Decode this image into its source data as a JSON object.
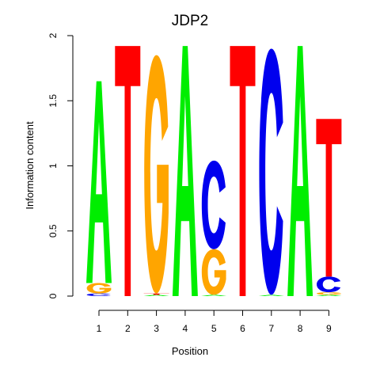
{
  "chart_data": {
    "type": "sequence-logo",
    "title": "JDP2",
    "xlabel": "Position",
    "ylabel": "Information content",
    "ylim": [
      0,
      2
    ],
    "yticks": [
      "0",
      "0.5",
      "1",
      "1.5",
      "2"
    ],
    "xticks": [
      "1",
      "2",
      "3",
      "4",
      "5",
      "6",
      "7",
      "8",
      "9"
    ],
    "colors": {
      "A": "#00ee00",
      "C": "#0000ee",
      "G": "#ffa500",
      "T": "#ff0000"
    },
    "positions": [
      {
        "pos": "1",
        "letters": [
          {
            "base": "C",
            "height": 0.02
          },
          {
            "base": "G",
            "height": 0.08
          },
          {
            "base": "A",
            "height": 1.55
          }
        ]
      },
      {
        "pos": "2",
        "letters": [
          {
            "base": "T",
            "height": 1.92
          }
        ]
      },
      {
        "pos": "3",
        "letters": [
          {
            "base": "A",
            "height": 0.01
          },
          {
            "base": "T",
            "height": 0.01
          },
          {
            "base": "G",
            "height": 1.83
          }
        ]
      },
      {
        "pos": "4",
        "letters": [
          {
            "base": "A",
            "height": 1.92
          }
        ]
      },
      {
        "pos": "5",
        "letters": [
          {
            "base": "A",
            "height": 0.01
          },
          {
            "base": "G",
            "height": 0.35
          },
          {
            "base": "C",
            "height": 0.68
          }
        ]
      },
      {
        "pos": "6",
        "letters": [
          {
            "base": "T",
            "height": 1.92
          }
        ]
      },
      {
        "pos": "7",
        "letters": [
          {
            "base": "A",
            "height": 0.01
          },
          {
            "base": "C",
            "height": 1.89
          }
        ]
      },
      {
        "pos": "8",
        "letters": [
          {
            "base": "A",
            "height": 1.92
          }
        ]
      },
      {
        "pos": "9",
        "letters": [
          {
            "base": "A",
            "height": 0.01
          },
          {
            "base": "G",
            "height": 0.02
          },
          {
            "base": "C",
            "height": 0.12
          },
          {
            "base": "T",
            "height": 1.21
          }
        ]
      }
    ]
  }
}
